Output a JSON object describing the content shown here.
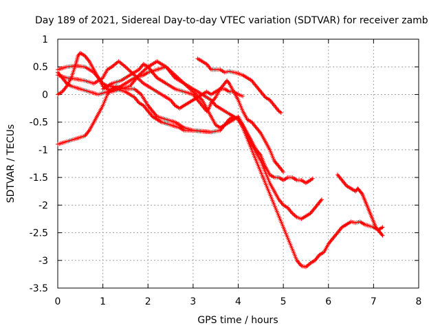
{
  "chart_data": {
    "type": "scatter",
    "title": "Day 189 of 2021, Sidereal Day-to-day VTEC variation (SDTVAR) for receiver zamb",
    "xlabel": "GPS time / hours",
    "ylabel": "SDTVAR / TECUs",
    "xlim": [
      0,
      8
    ],
    "ylim": [
      -3.5,
      1
    ],
    "x_ticks": [
      0,
      1,
      2,
      3,
      4,
      5,
      6,
      7,
      8
    ],
    "x_tick_labels": [
      "0",
      "1",
      "2",
      "3",
      "4",
      "5",
      "6",
      "7",
      "8"
    ],
    "y_ticks": [
      1,
      0.5,
      0,
      -0.5,
      -1,
      -1.5,
      -2,
      -2.5,
      -3,
      -3.5
    ],
    "y_tick_labels": [
      "1",
      "0.5",
      "0",
      "-0.5",
      "-1",
      "-1.5",
      "-2",
      "-2.5",
      "-3",
      "-3.5"
    ],
    "grid": true,
    "marker": "+",
    "color": "#ff0000",
    "series": [
      {
        "name": "track-1",
        "points": [
          [
            0.0,
            -0.9
          ],
          [
            0.2,
            -0.85
          ],
          [
            0.4,
            -0.8
          ],
          [
            0.6,
            -0.75
          ],
          [
            0.7,
            -0.65
          ],
          [
            0.8,
            -0.5
          ],
          [
            0.9,
            -0.35
          ],
          [
            1.0,
            -0.2
          ],
          [
            1.1,
            0.0
          ],
          [
            1.2,
            0.1
          ],
          [
            1.3,
            0.15
          ],
          [
            1.5,
            0.1
          ],
          [
            1.7,
            0.1
          ],
          [
            1.85,
            0.0
          ],
          [
            2.0,
            -0.2
          ],
          [
            2.1,
            -0.3
          ],
          [
            2.2,
            -0.4
          ],
          [
            2.4,
            -0.45
          ],
          [
            2.6,
            -0.5
          ],
          [
            2.8,
            -0.6
          ],
          [
            3.0,
            -0.65
          ],
          [
            3.2,
            -0.67
          ],
          [
            3.4,
            -0.68
          ],
          [
            3.6,
            -0.65
          ],
          [
            3.7,
            -0.55
          ],
          [
            3.8,
            -0.45
          ],
          [
            3.9,
            -0.4
          ],
          [
            4.0,
            -0.45
          ],
          [
            4.1,
            -0.6
          ],
          [
            4.2,
            -0.8
          ],
          [
            4.3,
            -1.0
          ],
          [
            4.4,
            -1.2
          ],
          [
            4.5,
            -1.4
          ],
          [
            4.6,
            -1.6
          ],
          [
            4.7,
            -1.8
          ],
          [
            4.8,
            -2.0
          ],
          [
            4.9,
            -2.2
          ],
          [
            5.0,
            -2.4
          ],
          [
            5.1,
            -2.6
          ],
          [
            5.2,
            -2.8
          ],
          [
            5.3,
            -3.0
          ],
          [
            5.4,
            -3.1
          ],
          [
            5.5,
            -3.12
          ],
          [
            5.6,
            -3.05
          ],
          [
            5.7,
            -3.0
          ],
          [
            5.8,
            -2.9
          ],
          [
            5.9,
            -2.85
          ],
          [
            6.0,
            -2.7
          ],
          [
            6.1,
            -2.6
          ],
          [
            6.2,
            -2.5
          ],
          [
            6.3,
            -2.4
          ],
          [
            6.4,
            -2.35
          ],
          [
            6.5,
            -2.3
          ],
          [
            6.6,
            -2.32
          ],
          [
            6.7,
            -2.3
          ],
          [
            6.8,
            -2.35
          ],
          [
            7.0,
            -2.4
          ],
          [
            7.1,
            -2.45
          ],
          [
            7.2,
            -2.4
          ]
        ]
      },
      {
        "name": "track-2",
        "points": [
          [
            0.0,
            0.45
          ],
          [
            0.2,
            0.5
          ],
          [
            0.4,
            0.52
          ],
          [
            0.6,
            0.5
          ],
          [
            0.8,
            0.4
          ],
          [
            0.9,
            0.3
          ],
          [
            1.0,
            0.15
          ],
          [
            1.1,
            0.1
          ],
          [
            1.2,
            0.05
          ],
          [
            1.4,
            0.1
          ],
          [
            1.6,
            0.15
          ],
          [
            1.8,
            0.35
          ],
          [
            2.0,
            0.5
          ],
          [
            2.1,
            0.55
          ],
          [
            2.2,
            0.6
          ],
          [
            2.3,
            0.55
          ],
          [
            2.4,
            0.5
          ],
          [
            2.6,
            0.35
          ],
          [
            2.8,
            0.2
          ],
          [
            3.0,
            0.05
          ],
          [
            3.2,
            -0.1
          ],
          [
            3.3,
            -0.25
          ],
          [
            3.4,
            -0.4
          ],
          [
            3.5,
            -0.55
          ],
          [
            3.6,
            -0.6
          ],
          [
            3.7,
            -0.55
          ],
          [
            3.8,
            -0.5
          ],
          [
            3.9,
            -0.45
          ],
          [
            4.0,
            -0.4
          ],
          [
            4.1,
            -0.55
          ],
          [
            4.2,
            -0.7
          ],
          [
            4.3,
            -0.9
          ],
          [
            4.4,
            -1.05
          ],
          [
            4.5,
            -1.2
          ],
          [
            4.6,
            -1.4
          ],
          [
            4.7,
            -1.6
          ],
          [
            4.8,
            -1.75
          ],
          [
            4.9,
            -1.9
          ],
          [
            5.0,
            -2.0
          ],
          [
            5.1,
            -2.05
          ],
          [
            5.2,
            -2.15
          ],
          [
            5.3,
            -2.22
          ],
          [
            5.4,
            -2.25
          ],
          [
            5.5,
            -2.2
          ],
          [
            5.6,
            -2.15
          ],
          [
            5.7,
            -2.05
          ],
          [
            5.8,
            -1.95
          ],
          [
            5.85,
            -1.9
          ]
        ]
      },
      {
        "name": "track-3",
        "points": [
          [
            0.0,
            0.4
          ],
          [
            0.1,
            0.3
          ],
          [
            0.2,
            0.2
          ],
          [
            0.3,
            0.15
          ],
          [
            0.5,
            0.1
          ],
          [
            0.7,
            0.05
          ],
          [
            0.9,
            0.0
          ],
          [
            1.1,
            0.05
          ],
          [
            1.3,
            0.1
          ],
          [
            1.5,
            0.2
          ],
          [
            1.7,
            0.3
          ],
          [
            1.9,
            0.35
          ],
          [
            2.0,
            0.4
          ],
          [
            2.2,
            0.45
          ],
          [
            2.4,
            0.5
          ],
          [
            2.5,
            0.4
          ],
          [
            2.6,
            0.3
          ],
          [
            2.8,
            0.2
          ],
          [
            3.0,
            0.1
          ],
          [
            3.2,
            0.0
          ],
          [
            3.4,
            -0.1
          ],
          [
            3.5,
            -0.2
          ],
          [
            3.6,
            -0.25
          ],
          [
            3.8,
            -0.35
          ],
          [
            3.9,
            -0.4
          ],
          [
            4.0,
            -0.45
          ],
          [
            4.1,
            -0.55
          ],
          [
            4.2,
            -0.7
          ],
          [
            4.3,
            -0.85
          ],
          [
            4.4,
            -1.0
          ],
          [
            4.5,
            -1.1
          ],
          [
            4.6,
            -1.3
          ],
          [
            4.7,
            -1.45
          ],
          [
            4.8,
            -1.5
          ],
          [
            4.9,
            -1.5
          ],
          [
            5.0,
            -1.55
          ],
          [
            5.1,
            -1.5
          ],
          [
            5.2,
            -1.5
          ],
          [
            5.3,
            -1.55
          ],
          [
            5.4,
            -1.55
          ],
          [
            5.5,
            -1.6
          ],
          [
            5.6,
            -1.55
          ],
          [
            5.65,
            -1.52
          ]
        ]
      },
      {
        "name": "track-4",
        "points": [
          [
            0.0,
            0.0
          ],
          [
            0.1,
            0.05
          ],
          [
            0.2,
            0.15
          ],
          [
            0.3,
            0.3
          ],
          [
            0.4,
            0.55
          ],
          [
            0.45,
            0.7
          ],
          [
            0.5,
            0.75
          ],
          [
            0.6,
            0.7
          ],
          [
            0.7,
            0.6
          ],
          [
            0.8,
            0.45
          ],
          [
            0.9,
            0.3
          ],
          [
            1.0,
            0.2
          ],
          [
            1.1,
            0.15
          ],
          [
            1.2,
            0.15
          ],
          [
            1.3,
            0.1
          ],
          [
            1.5,
            0.05
          ],
          [
            1.7,
            -0.05
          ],
          [
            1.8,
            -0.15
          ],
          [
            1.9,
            -0.2
          ],
          [
            2.0,
            -0.3
          ],
          [
            2.1,
            -0.4
          ],
          [
            2.2,
            -0.45
          ],
          [
            2.3,
            -0.5
          ],
          [
            2.5,
            -0.55
          ],
          [
            2.7,
            -0.6
          ],
          [
            2.8,
            -0.65
          ],
          [
            2.9,
            -0.65
          ],
          [
            3.0,
            -0.65
          ],
          [
            3.2,
            -0.66
          ],
          [
            3.4,
            -0.68
          ]
        ]
      },
      {
        "name": "track-5",
        "points": [
          [
            0.0,
            0.35
          ],
          [
            0.2,
            0.3
          ],
          [
            0.4,
            0.28
          ],
          [
            0.6,
            0.25
          ],
          [
            0.8,
            0.2
          ],
          [
            1.0,
            0.3
          ],
          [
            1.1,
            0.45
          ],
          [
            1.2,
            0.5
          ],
          [
            1.35,
            0.6
          ],
          [
            1.5,
            0.5
          ],
          [
            1.7,
            0.35
          ],
          [
            1.9,
            0.2
          ],
          [
            2.1,
            0.1
          ],
          [
            2.3,
            0.0
          ],
          [
            2.5,
            -0.1
          ],
          [
            2.6,
            -0.2
          ],
          [
            2.7,
            -0.25
          ],
          [
            2.8,
            -0.2
          ],
          [
            2.9,
            -0.15
          ],
          [
            3.0,
            -0.1
          ],
          [
            3.1,
            -0.05
          ],
          [
            3.2,
            0.0
          ],
          [
            3.3,
            0.05
          ],
          [
            3.4,
            0.0
          ],
          [
            3.5,
            0.05
          ],
          [
            3.6,
            0.1
          ],
          [
            3.7,
            0.1
          ],
          [
            3.8,
            0.05
          ],
          [
            3.9,
            0.05
          ],
          [
            4.0,
            0.0
          ],
          [
            4.1,
            -0.03
          ]
        ]
      },
      {
        "name": "track-6",
        "points": [
          [
            1.0,
            0.1
          ],
          [
            1.1,
            0.15
          ],
          [
            1.2,
            0.2
          ],
          [
            1.4,
            0.25
          ],
          [
            1.6,
            0.35
          ],
          [
            1.8,
            0.45
          ],
          [
            1.9,
            0.55
          ],
          [
            2.0,
            0.5
          ],
          [
            2.1,
            0.4
          ],
          [
            2.2,
            0.3
          ],
          [
            2.3,
            0.25
          ],
          [
            2.4,
            0.2
          ],
          [
            2.6,
            0.1
          ],
          [
            2.8,
            0.05
          ],
          [
            3.0,
            0.0
          ],
          [
            3.1,
            -0.1
          ],
          [
            3.2,
            -0.2
          ],
          [
            3.3,
            -0.3
          ],
          [
            3.35,
            -0.25
          ],
          [
            3.4,
            -0.15
          ],
          [
            3.5,
            -0.05
          ],
          [
            3.6,
            0.1
          ],
          [
            3.7,
            0.2
          ],
          [
            3.75,
            0.25
          ],
          [
            3.8,
            0.2
          ],
          [
            3.9,
            0.05
          ],
          [
            4.0,
            -0.1
          ],
          [
            4.1,
            -0.3
          ],
          [
            4.2,
            -0.45
          ],
          [
            4.3,
            -0.5
          ],
          [
            4.4,
            -0.6
          ],
          [
            4.5,
            -0.7
          ],
          [
            4.6,
            -0.85
          ],
          [
            4.7,
            -1.0
          ],
          [
            4.8,
            -1.2
          ],
          [
            4.9,
            -1.3
          ],
          [
            5.0,
            -1.4
          ]
        ]
      },
      {
        "name": "track-7",
        "points": [
          [
            3.1,
            0.65
          ],
          [
            3.2,
            0.6
          ],
          [
            3.3,
            0.55
          ],
          [
            3.4,
            0.45
          ],
          [
            3.5,
            0.45
          ],
          [
            3.6,
            0.45
          ],
          [
            3.7,
            0.4
          ],
          [
            3.8,
            0.42
          ],
          [
            3.9,
            0.4
          ],
          [
            4.0,
            0.38
          ],
          [
            4.1,
            0.35
          ],
          [
            4.2,
            0.3
          ],
          [
            4.3,
            0.25
          ],
          [
            4.4,
            0.15
          ],
          [
            4.5,
            0.05
          ],
          [
            4.6,
            -0.05
          ],
          [
            4.7,
            -0.1
          ],
          [
            4.8,
            -0.2
          ],
          [
            4.9,
            -0.3
          ],
          [
            4.95,
            -0.33
          ]
        ]
      },
      {
        "name": "track-8",
        "points": [
          [
            6.2,
            -1.45
          ],
          [
            6.3,
            -1.55
          ],
          [
            6.4,
            -1.65
          ],
          [
            6.5,
            -1.7
          ],
          [
            6.6,
            -1.75
          ],
          [
            6.65,
            -1.7
          ],
          [
            6.7,
            -1.75
          ],
          [
            6.75,
            -1.8
          ],
          [
            6.8,
            -1.9
          ],
          [
            6.85,
            -2.0
          ],
          [
            6.9,
            -2.1
          ],
          [
            6.95,
            -2.2
          ],
          [
            7.0,
            -2.3
          ],
          [
            7.05,
            -2.4
          ],
          [
            7.1,
            -2.45
          ],
          [
            7.15,
            -2.5
          ],
          [
            7.2,
            -2.55
          ]
        ]
      }
    ]
  }
}
